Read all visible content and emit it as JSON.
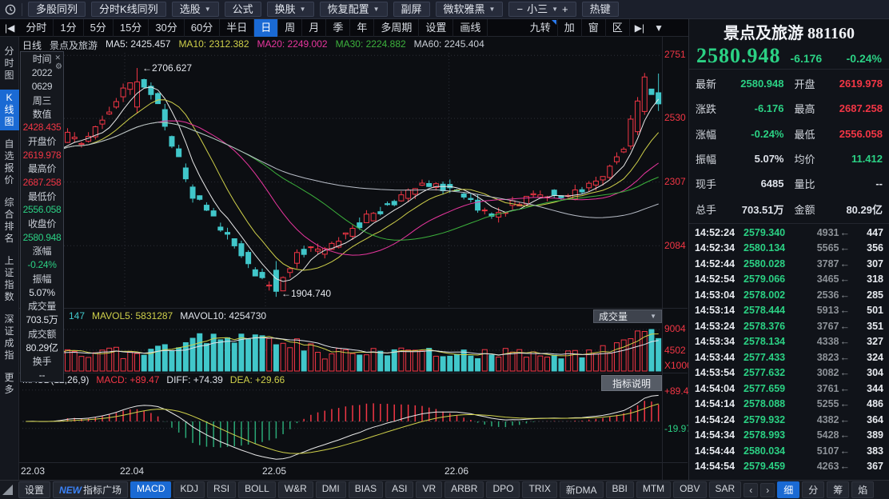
{
  "colors": {
    "red": "#f23645",
    "green": "#2bd184",
    "cyan": "#41c7ca",
    "yellow": "#cfd04a",
    "magenta": "#e8369e",
    "ma_green": "#3cb13c",
    "white": "#dfe3ea",
    "label": "#c9ced6",
    "gray": "#8d9298",
    "blue": "#1a6ad4"
  },
  "topbar": {
    "buttons": [
      {
        "label": "多股同列",
        "arrow": false
      },
      {
        "label": "分时K线同列",
        "arrow": false
      },
      {
        "label": "选股",
        "arrow": true
      },
      {
        "label": "公式",
        "arrow": false
      },
      {
        "label": "换肤",
        "arrow": true
      },
      {
        "label": "恢复配置",
        "arrow": true
      },
      {
        "label": "副屏",
        "arrow": false
      },
      {
        "label": "微软雅黑",
        "arrow": true
      }
    ],
    "font_minus": "−",
    "font_size": "小三",
    "font_plus": "+",
    "hotkey": "热键"
  },
  "toolbar": {
    "icon_left": "|◀",
    "periods": [
      "分时",
      "1分",
      "5分",
      "15分",
      "30分",
      "60分",
      "半日",
      "日",
      "周",
      "月",
      "季",
      "年",
      "多周期",
      "设置",
      "画线"
    ],
    "selected": "日",
    "right_items": [
      {
        "label": "九转",
        "badge": true
      },
      {
        "label": "加",
        "badge": false
      },
      {
        "label": "窗",
        "badge": false
      },
      {
        "label": "区",
        "badge": false
      }
    ],
    "icon_skip_end": "▶|",
    "icon_dropdown": "▼"
  },
  "sidebar": {
    "items": [
      "分时图",
      "K线图",
      "自选报价",
      "综合排名",
      "上证指数",
      "深证成指",
      "更多"
    ],
    "selected": "K线图"
  },
  "chart": {
    "info": {
      "period": "日线",
      "name": "景点及旅游",
      "ma_items": [
        {
          "text": "MA5: 2425.457",
          "color": "white"
        },
        {
          "text": "MA10: 2312.382",
          "color": "yellow"
        },
        {
          "text": "MA20: 2249.002",
          "color": "magenta"
        },
        {
          "text": "MA30: 2224.882",
          "color": "ma_green"
        },
        {
          "text": "MA60: 2245.404",
          "color": "label"
        }
      ]
    },
    "y_axis": [
      "2751",
      "2530",
      "2307",
      "2084"
    ],
    "x_axis": [
      "22.03",
      "22.04",
      "22.05",
      "22.06"
    ],
    "peak_label": "←2706.627",
    "trough_label": "←1904.740"
  },
  "infobox": {
    "rows": [
      {
        "t": "时间",
        "c": "label"
      },
      {
        "t": "2022",
        "c": "label"
      },
      {
        "t": "0629",
        "c": "label"
      },
      {
        "t": "周三",
        "c": "label"
      },
      {
        "t": "数值",
        "c": "label"
      },
      {
        "t": "2428.435",
        "c": "red"
      },
      {
        "t": "开盘价",
        "c": "label"
      },
      {
        "t": "2619.978",
        "c": "red"
      },
      {
        "t": "最高价",
        "c": "label"
      },
      {
        "t": "2687.258",
        "c": "red"
      },
      {
        "t": "最低价",
        "c": "label"
      },
      {
        "t": "2556.058",
        "c": "green"
      },
      {
        "t": "收盘价",
        "c": "label"
      },
      {
        "t": "2580.948",
        "c": "green"
      },
      {
        "t": "涨幅",
        "c": "label"
      },
      {
        "t": "-0.24%",
        "c": "green"
      },
      {
        "t": "振幅",
        "c": "label"
      },
      {
        "t": "5.07%",
        "c": "white"
      },
      {
        "t": "成交量",
        "c": "label"
      },
      {
        "t": "703.5万",
        "c": "white"
      },
      {
        "t": "成交额",
        "c": "label"
      },
      {
        "t": "80.29亿",
        "c": "white"
      },
      {
        "t": "换手",
        "c": "label"
      },
      {
        "t": "--",
        "c": "white"
      }
    ],
    "close_icon": "✕",
    "gear_icon": "⚙"
  },
  "volume": {
    "count": "147",
    "mavol5": "MAVOL5: 5831287",
    "mavol10": "MAVOL10: 4254730",
    "dropdown_label": "成交量",
    "dropdown_arrow": "▼",
    "axis": [
      "9004",
      "4502"
    ],
    "unit": "X1000"
  },
  "macd": {
    "title": "MACD(12,26,9)",
    "macd_label": "MACD: +89.47",
    "diff_label": "DIFF: +74.39",
    "dea_label": "DEA: +29.66",
    "button_label": "指标说明",
    "axis_pos": "+89.47",
    "axis_neg": "-19.97"
  },
  "bottombar": {
    "settings": "设置",
    "new_badge": "NEW",
    "plaza": "指标广场",
    "tabs": [
      "MACD",
      "KDJ",
      "RSI",
      "BOLL",
      "W&R",
      "DMI",
      "BIAS",
      "ASI",
      "VR",
      "ARBR",
      "DPO",
      "TRIX",
      "新DMA",
      "BBI",
      "MTM",
      "OBV",
      "SAR"
    ],
    "selected": "MACD",
    "arrow_left": "‹",
    "arrow_right": "›",
    "right_tabs": [
      "细",
      "分",
      "筹",
      "焰"
    ],
    "right_selected": "细"
  },
  "quote_panel": {
    "title": "景点及旅游 881160",
    "price": "2580.948",
    "change": "-6.176",
    "change_pct": "-0.24%",
    "arrow": "←",
    "grid": [
      {
        "l1": "最新",
        "v1": "2580.948",
        "c1": "green",
        "l2": "开盘",
        "v2": "2619.978",
        "c2": "red"
      },
      {
        "l1": "涨跌",
        "v1": "-6.176",
        "c1": "green",
        "l2": "最高",
        "v2": "2687.258",
        "c2": "red"
      },
      {
        "l1": "涨幅",
        "v1": "-0.24%",
        "c1": "green",
        "l2": "最低",
        "v2": "2556.058",
        "c2": "red"
      },
      {
        "l1": "振幅",
        "v1": "5.07%",
        "c1": "white",
        "l2": "均价",
        "v2": "11.412",
        "c2": "green"
      },
      {
        "l1": "现手",
        "v1": "6485",
        "c1": "white",
        "l2": "量比",
        "v2": "--",
        "c2": "white"
      },
      {
        "l1": "总手",
        "v1": "703.51万",
        "c1": "white",
        "l2": "金额",
        "v2": "80.29亿",
        "c2": "white"
      }
    ],
    "ticks": [
      [
        "14:52:24",
        "2579.340",
        "4931",
        "447"
      ],
      [
        "14:52:34",
        "2580.134",
        "5565",
        "356"
      ],
      [
        "14:52:44",
        "2580.028",
        "3787",
        "307"
      ],
      [
        "14:52:54",
        "2579.066",
        "3465",
        "318"
      ],
      [
        "14:53:04",
        "2578.002",
        "2536",
        "285"
      ],
      [
        "14:53:14",
        "2578.444",
        "5913",
        "501"
      ],
      [
        "14:53:24",
        "2578.376",
        "3767",
        "351"
      ],
      [
        "14:53:34",
        "2578.134",
        "4338",
        "327"
      ],
      [
        "14:53:44",
        "2577.433",
        "3823",
        "324"
      ],
      [
        "14:53:54",
        "2577.632",
        "3082",
        "304"
      ],
      [
        "14:54:04",
        "2577.659",
        "3761",
        "344"
      ],
      [
        "14:54:14",
        "2578.088",
        "5255",
        "486"
      ],
      [
        "14:54:24",
        "2579.932",
        "4382",
        "364"
      ],
      [
        "14:54:34",
        "2578.993",
        "5428",
        "389"
      ],
      [
        "14:54:44",
        "2580.034",
        "5107",
        "383"
      ],
      [
        "14:54:54",
        "2579.459",
        "4263",
        "367"
      ]
    ]
  },
  "chart_data": {
    "type": "candlestick",
    "symbol": "景点及旅游 881160",
    "period": "日线",
    "x_axis_months": [
      "22.03",
      "22.04",
      "22.05",
      "22.06"
    ],
    "month_fractions": [
      0,
      0.16,
      0.38,
      0.667
    ],
    "y_gridlines": [
      2751,
      2530,
      2307,
      2084
    ],
    "price_range_top": 2760,
    "price_range_bottom": 1880,
    "candle_count": 92,
    "peak_annotation": {
      "value": 2706.627,
      "fraction": 0.178
    },
    "trough_annotation": {
      "value": 1904.74,
      "fraction": 0.4
    },
    "last_candle": {
      "open": 2619.978,
      "high": 2687.258,
      "low": 2556.058,
      "close": 2580.948
    },
    "ma_values": {
      "MA5": 2425.457,
      "MA10": 2312.382,
      "MA20": 2249.002,
      "MA30": 2224.882,
      "MA60": 2245.404
    },
    "trend": [
      [
        0,
        2420
      ],
      [
        0.03,
        2395
      ],
      [
        0.07,
        2470
      ],
      [
        0.1,
        2445
      ],
      [
        0.14,
        2550
      ],
      [
        0.178,
        2690
      ],
      [
        0.21,
        2600
      ],
      [
        0.24,
        2430
      ],
      [
        0.27,
        2260
      ],
      [
        0.31,
        2160
      ],
      [
        0.34,
        2080
      ],
      [
        0.37,
        1990
      ],
      [
        0.4,
        1915
      ],
      [
        0.44,
        2070
      ],
      [
        0.48,
        2065
      ],
      [
        0.52,
        2140
      ],
      [
        0.56,
        2205
      ],
      [
        0.6,
        2250
      ],
      [
        0.64,
        2300
      ],
      [
        0.67,
        2285
      ],
      [
        0.71,
        2235
      ],
      [
        0.75,
        2190
      ],
      [
        0.79,
        2245
      ],
      [
        0.83,
        2270
      ],
      [
        0.86,
        2245
      ],
      [
        0.89,
        2295
      ],
      [
        0.92,
        2330
      ],
      [
        0.95,
        2420
      ],
      [
        0.975,
        2555
      ],
      [
        0.99,
        2670
      ],
      [
        1,
        2580.948
      ]
    ],
    "volume_axis_max": 9004,
    "volume_axis_mid": 4502,
    "volume_unit": "X1000",
    "macd": {
      "macd": 89.47,
      "diff": 74.39,
      "dea": 29.66,
      "axis_low": -19.97
    }
  }
}
